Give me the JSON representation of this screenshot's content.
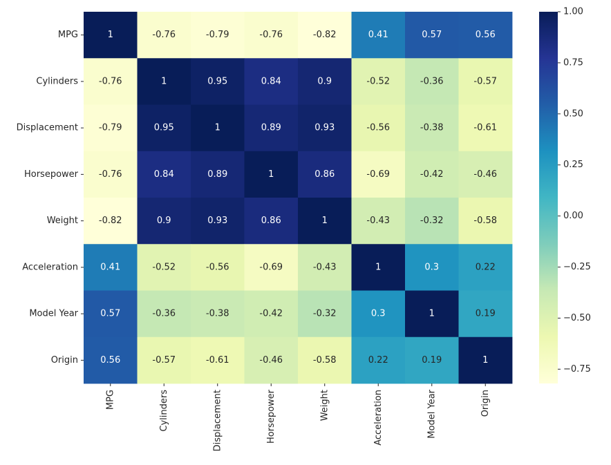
{
  "chart_data": {
    "type": "heatmap",
    "title": "",
    "xlabel": "",
    "ylabel": "",
    "rows": [
      "MPG",
      "Cylinders",
      "Displacement",
      "Horsepower",
      "Weight",
      "Acceleration",
      "Model Year",
      "Origin"
    ],
    "columns": [
      "MPG",
      "Cylinders",
      "Displacement",
      "Horsepower",
      "Weight",
      "Acceleration",
      "Model Year",
      "Origin"
    ],
    "values": [
      [
        1,
        -0.76,
        -0.79,
        -0.76,
        -0.82,
        0.41,
        0.57,
        0.56
      ],
      [
        -0.76,
        1,
        0.95,
        0.84,
        0.9,
        -0.52,
        -0.36,
        -0.57
      ],
      [
        -0.79,
        0.95,
        1,
        0.89,
        0.93,
        -0.56,
        -0.38,
        -0.61
      ],
      [
        -0.76,
        0.84,
        0.89,
        1,
        0.86,
        -0.69,
        -0.42,
        -0.46
      ],
      [
        -0.82,
        0.9,
        0.93,
        0.86,
        1,
        -0.43,
        -0.32,
        -0.58
      ],
      [
        0.41,
        -0.52,
        -0.56,
        -0.69,
        -0.43,
        1,
        0.3,
        0.22
      ],
      [
        0.57,
        -0.36,
        -0.38,
        -0.42,
        -0.32,
        0.3,
        1,
        0.19
      ],
      [
        0.56,
        -0.57,
        -0.61,
        -0.46,
        -0.58,
        0.22,
        0.19,
        1
      ]
    ],
    "annotated": true,
    "colormap": "YlGnBu",
    "color_range": [
      -0.82,
      1.0
    ],
    "colorbar": {
      "ticks": [
        1.0,
        0.75,
        0.5,
        0.25,
        0.0,
        -0.25,
        -0.5,
        -0.75
      ],
      "tick_labels": [
        "1.00",
        "0.75",
        "0.50",
        "0.25",
        "0.00",
        "−0.25",
        "−0.50",
        "−0.75"
      ]
    },
    "grid": false
  }
}
